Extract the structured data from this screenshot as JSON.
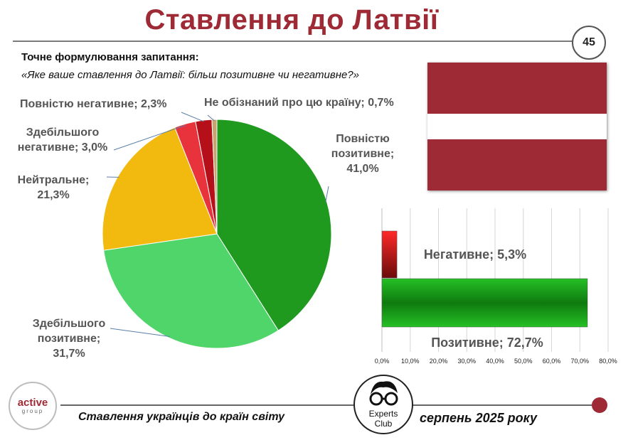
{
  "header": {
    "title": "Ставлення до Латвії",
    "page_number": "45"
  },
  "question": {
    "heading": "Точне формулювання запитання:",
    "text": "«Яке ваше ставлення до Латвії: більш позитивне чи негативне?»"
  },
  "flag": {
    "colors": [
      "#9e2a35",
      "#ffffff",
      "#9e2a35"
    ]
  },
  "chart_data": [
    {
      "type": "pie",
      "title": "",
      "labels": [
        "Повністю позитивне",
        "Здебільшого позитивне",
        "Нейтральне",
        "Здебільшого негативне",
        "Повністю негативне",
        "Не обізнаний про цю країну"
      ],
      "values": [
        41.0,
        31.7,
        21.3,
        3.0,
        2.3,
        0.7
      ],
      "value_labels": [
        "41,0%",
        "31,7%",
        "21,3%",
        "3,0%",
        "2,3%",
        "0,7%"
      ],
      "colors": [
        "#1f9a1f",
        "#4fd56a",
        "#f2b90f",
        "#e8333c",
        "#b5101a",
        "#c9a36f"
      ],
      "display_labels": [
        [
          "Повністю",
          "позитивне;",
          "41,0%"
        ],
        [
          "Здебільшого",
          "позитивне;",
          "31,7%"
        ],
        [
          "Нейтральне;",
          "21,3%"
        ],
        [
          "Здебільшого",
          "негативне; 3,0%"
        ],
        [
          "Повністю негативне; 2,3%"
        ],
        [
          "Не обізнаний про цю країну; 0,7%"
        ]
      ]
    },
    {
      "type": "bar",
      "orientation": "horizontal",
      "title": "",
      "categories": [
        "Негативне",
        "Позитивне"
      ],
      "values": [
        5.3,
        72.7
      ],
      "value_labels": [
        "Негативне; 5,3%",
        "Позитивне; 72,7%"
      ],
      "colors": [
        "#c8101a",
        "#22b022"
      ],
      "xlim": [
        0,
        80
      ],
      "xticks": [
        "0,0%",
        "10,0%",
        "20,0%",
        "30,0%",
        "40,0%",
        "50,0%",
        "60,0%",
        "70,0%",
        "80,0%"
      ],
      "grid": true
    }
  ],
  "footer": {
    "left_text": "Ставлення українців до країн світу",
    "right_text": "серпень 2025 року",
    "logo_active_1": "active",
    "logo_active_2": "group",
    "logo_experts_1": "Experts",
    "logo_experts_2": "Club"
  }
}
